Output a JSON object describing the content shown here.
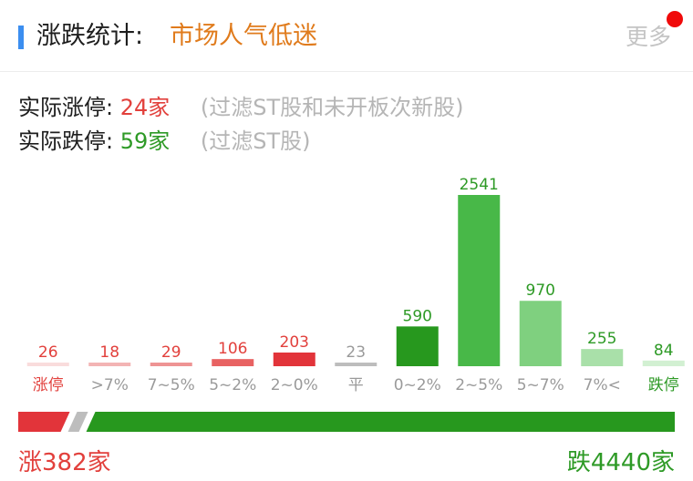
{
  "header": {
    "title": "涨跌统计:",
    "mood": "市场人气低迷",
    "more_label": "更多"
  },
  "stats": {
    "limit_up_label": "实际涨停:",
    "limit_up_value": "24家",
    "limit_up_note": "(过滤ST股和未开板次新股)",
    "limit_down_label": "实际跌停:",
    "limit_down_value": "59家",
    "limit_down_note": "(过滤ST股)"
  },
  "chart_data": {
    "type": "bar",
    "categories": [
      "涨停",
      ">7%",
      "7~5%",
      "5~2%",
      "2~0%",
      "平",
      "0~2%",
      "2~5%",
      "5~7%",
      "7%<",
      "跌停"
    ],
    "values": [
      26,
      18,
      29,
      106,
      203,
      23,
      590,
      2541,
      970,
      255,
      84
    ],
    "bar_colors": [
      "#f9dcdc",
      "#f3b4b4",
      "#ee9494",
      "#e86262",
      "#e2343a",
      "#bdbdbd",
      "#27981e",
      "#48b848",
      "#7fd07f",
      "#a9e0a9",
      "#d2f0d2"
    ],
    "label_colors": [
      "#e2403c",
      "#e2403c",
      "#e2403c",
      "#e2403c",
      "#e2403c",
      "#9a9a9a",
      "#2e9a26",
      "#2e9a26",
      "#2e9a26",
      "#2e9a26",
      "#2e9a26"
    ],
    "category_label_colors": [
      "#e2403c",
      "#9a9a9a",
      "#9a9a9a",
      "#9a9a9a",
      "#9a9a9a",
      "#9a9a9a",
      "#9a9a9a",
      "#9a9a9a",
      "#9a9a9a",
      "#9a9a9a",
      "#2e9a26"
    ],
    "ylim": [
      0,
      2541
    ],
    "grid": false,
    "title": "",
    "xlabel": "",
    "ylabel": ""
  },
  "totals": {
    "up_label": "涨382家",
    "down_label": "跌4440家",
    "up_count": 382,
    "down_count": 4440,
    "flat_count": 23,
    "up_color": "#e2343a",
    "flat_color": "#bdbdbd",
    "down_color": "#27981e"
  }
}
